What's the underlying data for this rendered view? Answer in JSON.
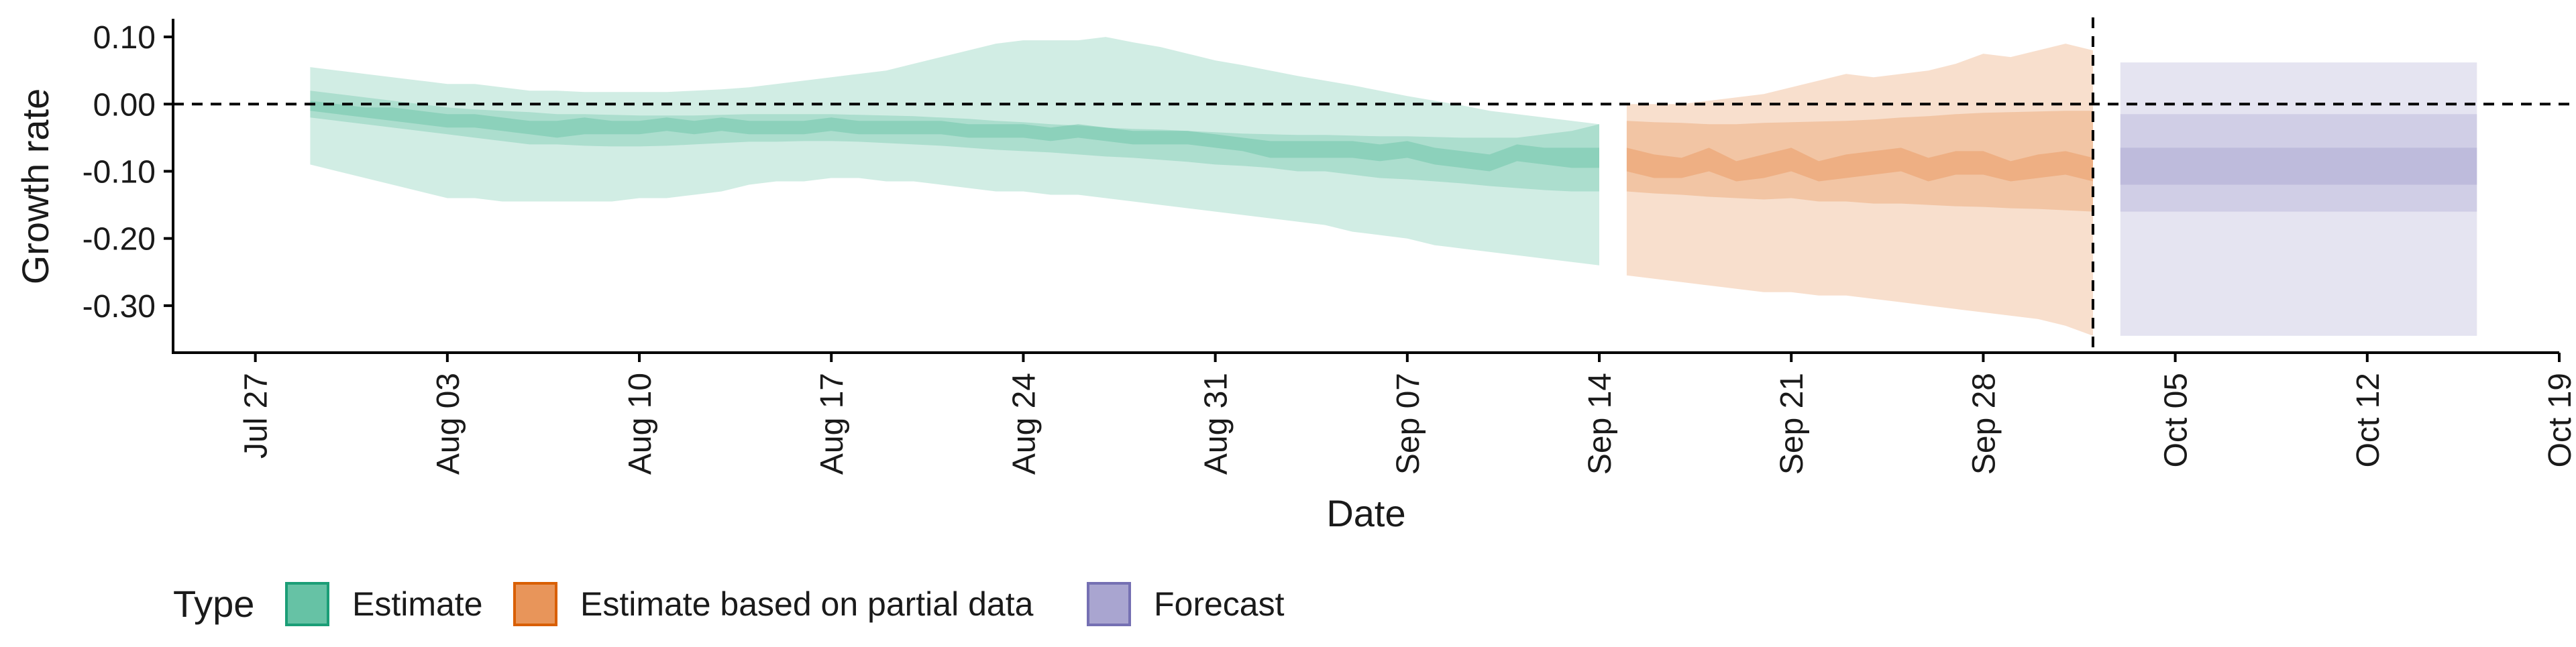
{
  "chart_data": {
    "type": "area",
    "title": "",
    "xlabel": "Date",
    "ylabel": "Growth rate",
    "x_start_date": "2020-07-27",
    "xlim_days": [
      -3,
      84
    ],
    "ylim": [
      -0.37,
      0.125
    ],
    "x_ticks": [
      {
        "label": "Jul 27",
        "day": 0
      },
      {
        "label": "Aug 03",
        "day": 7
      },
      {
        "label": "Aug 10",
        "day": 14
      },
      {
        "label": "Aug 17",
        "day": 21
      },
      {
        "label": "Aug 24",
        "day": 28
      },
      {
        "label": "Aug 31",
        "day": 35
      },
      {
        "label": "Sep 07",
        "day": 42
      },
      {
        "label": "Sep 14",
        "day": 49
      },
      {
        "label": "Sep 21",
        "day": 56
      },
      {
        "label": "Sep 28",
        "day": 63
      },
      {
        "label": "Oct 05",
        "day": 70
      },
      {
        "label": "Oct 12",
        "day": 77
      },
      {
        "label": "Oct 19",
        "day": 84
      }
    ],
    "y_ticks": [
      {
        "label": "0.10",
        "value": 0.1
      },
      {
        "label": "0.00",
        "value": 0.0
      },
      {
        "label": "-0.10",
        "value": -0.1
      },
      {
        "label": "-0.20",
        "value": -0.2
      },
      {
        "label": "-0.30",
        "value": -0.3
      }
    ],
    "reference_lines": {
      "horizontal_y": 0.0,
      "vertical_day": 67
    },
    "legend": {
      "title": "Type",
      "position": "bottom-left",
      "entries": [
        {
          "label": "Estimate",
          "fill": "#66c2a5",
          "border": "#1b9e77"
        },
        {
          "label": "Estimate based on partial data",
          "fill": "#e8955a",
          "border": "#d95f02"
        },
        {
          "label": "Forecast",
          "fill": "#a9a5d0",
          "border": "#7570b3"
        }
      ]
    },
    "band_opacities": {
      "outer": 0.3,
      "middle": 0.35,
      "inner": 0.45
    },
    "series": [
      {
        "name": "Estimate",
        "color": "#66c2a5",
        "x_days": [
          2,
          3,
          4,
          5,
          6,
          7,
          8,
          9,
          10,
          11,
          12,
          13,
          14,
          15,
          16,
          17,
          18,
          19,
          20,
          21,
          22,
          23,
          24,
          25,
          26,
          27,
          28,
          29,
          30,
          31,
          32,
          33,
          34,
          35,
          36,
          37,
          38,
          39,
          40,
          41,
          42,
          43,
          44,
          45,
          46,
          47,
          48,
          49
        ],
        "outer_lower": [
          -0.09,
          -0.1,
          -0.11,
          -0.12,
          -0.13,
          -0.14,
          -0.14,
          -0.145,
          -0.145,
          -0.145,
          -0.145,
          -0.145,
          -0.14,
          -0.14,
          -0.135,
          -0.13,
          -0.12,
          -0.115,
          -0.115,
          -0.11,
          -0.11,
          -0.115,
          -0.115,
          -0.12,
          -0.125,
          -0.13,
          -0.13,
          -0.135,
          -0.135,
          -0.14,
          -0.145,
          -0.15,
          -0.155,
          -0.16,
          -0.165,
          -0.17,
          -0.175,
          -0.18,
          -0.19,
          -0.195,
          -0.2,
          -0.21,
          -0.215,
          -0.22,
          -0.225,
          -0.23,
          -0.235,
          -0.24
        ],
        "middle_lower": [
          -0.02,
          -0.025,
          -0.03,
          -0.035,
          -0.04,
          -0.045,
          -0.05,
          -0.055,
          -0.06,
          -0.06,
          -0.062,
          -0.063,
          -0.063,
          -0.062,
          -0.06,
          -0.058,
          -0.056,
          -0.056,
          -0.055,
          -0.055,
          -0.056,
          -0.058,
          -0.06,
          -0.062,
          -0.065,
          -0.068,
          -0.07,
          -0.072,
          -0.075,
          -0.078,
          -0.08,
          -0.083,
          -0.086,
          -0.09,
          -0.092,
          -0.095,
          -0.1,
          -0.1,
          -0.105,
          -0.11,
          -0.112,
          -0.115,
          -0.118,
          -0.122,
          -0.125,
          -0.128,
          -0.13,
          -0.13
        ],
        "inner_lower": [
          -0.01,
          -0.015,
          -0.02,
          -0.025,
          -0.03,
          -0.035,
          -0.035,
          -0.04,
          -0.045,
          -0.05,
          -0.045,
          -0.045,
          -0.045,
          -0.04,
          -0.045,
          -0.04,
          -0.045,
          -0.045,
          -0.045,
          -0.04,
          -0.045,
          -0.045,
          -0.045,
          -0.045,
          -0.05,
          -0.05,
          -0.05,
          -0.055,
          -0.05,
          -0.055,
          -0.06,
          -0.06,
          -0.06,
          -0.065,
          -0.07,
          -0.08,
          -0.08,
          -0.08,
          -0.08,
          -0.085,
          -0.08,
          -0.09,
          -0.095,
          -0.1,
          -0.085,
          -0.09,
          -0.095,
          -0.095
        ],
        "inner_upper": [
          0.005,
          0.0,
          -0.005,
          -0.005,
          -0.01,
          -0.015,
          -0.015,
          -0.02,
          -0.025,
          -0.025,
          -0.02,
          -0.025,
          -0.025,
          -0.02,
          -0.025,
          -0.02,
          -0.025,
          -0.025,
          -0.025,
          -0.02,
          -0.025,
          -0.025,
          -0.025,
          -0.025,
          -0.03,
          -0.03,
          -0.03,
          -0.035,
          -0.03,
          -0.035,
          -0.04,
          -0.04,
          -0.04,
          -0.045,
          -0.05,
          -0.055,
          -0.055,
          -0.055,
          -0.055,
          -0.06,
          -0.055,
          -0.065,
          -0.07,
          -0.075,
          -0.06,
          -0.065,
          -0.065,
          -0.065
        ],
        "middle_upper": [
          0.02,
          0.015,
          0.01,
          0.005,
          0.0,
          -0.005,
          -0.008,
          -0.01,
          -0.012,
          -0.015,
          -0.015,
          -0.016,
          -0.017,
          -0.017,
          -0.017,
          -0.016,
          -0.015,
          -0.015,
          -0.015,
          -0.015,
          -0.016,
          -0.017,
          -0.018,
          -0.02,
          -0.022,
          -0.025,
          -0.027,
          -0.03,
          -0.032,
          -0.035,
          -0.037,
          -0.038,
          -0.04,
          -0.042,
          -0.044,
          -0.045,
          -0.046,
          -0.046,
          -0.047,
          -0.048,
          -0.048,
          -0.049,
          -0.05,
          -0.05,
          -0.05,
          -0.045,
          -0.04,
          -0.03
        ],
        "outer_upper": [
          0.055,
          0.05,
          0.045,
          0.04,
          0.035,
          0.03,
          0.03,
          0.025,
          0.02,
          0.02,
          0.018,
          0.018,
          0.018,
          0.018,
          0.02,
          0.022,
          0.025,
          0.03,
          0.035,
          0.04,
          0.045,
          0.05,
          0.06,
          0.07,
          0.08,
          0.09,
          0.095,
          0.095,
          0.095,
          0.1,
          0.092,
          0.085,
          0.075,
          0.065,
          0.058,
          0.05,
          0.042,
          0.035,
          0.028,
          0.02,
          0.012,
          0.005,
          -0.002,
          -0.01,
          -0.015,
          -0.02,
          -0.025,
          -0.03
        ]
      },
      {
        "name": "Estimate based on partial data",
        "color": "#e8955a",
        "x_days": [
          50,
          51,
          52,
          53,
          54,
          55,
          56,
          57,
          58,
          59,
          60,
          61,
          62,
          63,
          64,
          65,
          66,
          67
        ],
        "outer_lower": [
          -0.255,
          -0.26,
          -0.265,
          -0.27,
          -0.275,
          -0.28,
          -0.28,
          -0.285,
          -0.285,
          -0.29,
          -0.295,
          -0.3,
          -0.305,
          -0.31,
          -0.315,
          -0.32,
          -0.33,
          -0.345
        ],
        "middle_lower": [
          -0.13,
          -0.133,
          -0.135,
          -0.138,
          -0.14,
          -0.142,
          -0.14,
          -0.145,
          -0.145,
          -0.148,
          -0.148,
          -0.15,
          -0.152,
          -0.153,
          -0.155,
          -0.156,
          -0.158,
          -0.16
        ],
        "inner_lower": [
          -0.1,
          -0.11,
          -0.11,
          -0.1,
          -0.115,
          -0.11,
          -0.1,
          -0.115,
          -0.11,
          -0.105,
          -0.1,
          -0.115,
          -0.105,
          -0.105,
          -0.115,
          -0.11,
          -0.105,
          -0.115
        ],
        "inner_upper": [
          -0.065,
          -0.075,
          -0.08,
          -0.065,
          -0.085,
          -0.075,
          -0.065,
          -0.085,
          -0.075,
          -0.07,
          -0.065,
          -0.08,
          -0.07,
          -0.07,
          -0.085,
          -0.075,
          -0.07,
          -0.08
        ],
        "middle_upper": [
          -0.025,
          -0.027,
          -0.028,
          -0.03,
          -0.03,
          -0.028,
          -0.027,
          -0.026,
          -0.025,
          -0.023,
          -0.02,
          -0.018,
          -0.015,
          -0.013,
          -0.012,
          -0.011,
          -0.01,
          -0.01
        ],
        "outer_upper": [
          0.0,
          0.0,
          0.0,
          0.005,
          0.01,
          0.015,
          0.025,
          0.035,
          0.045,
          0.04,
          0.045,
          0.05,
          0.06,
          0.075,
          0.07,
          0.08,
          0.09,
          0.08
        ]
      },
      {
        "name": "Forecast",
        "color": "#a9a5d0",
        "x_days": [
          68,
          81
        ],
        "outer_lower": [
          -0.345,
          -0.345
        ],
        "middle_lower": [
          -0.16,
          -0.16
        ],
        "inner_lower": [
          -0.12,
          -0.12
        ],
        "inner_upper": [
          -0.065,
          -0.065
        ],
        "middle_upper": [
          -0.015,
          -0.015
        ],
        "outer_upper": [
          0.062,
          0.062
        ]
      }
    ]
  }
}
